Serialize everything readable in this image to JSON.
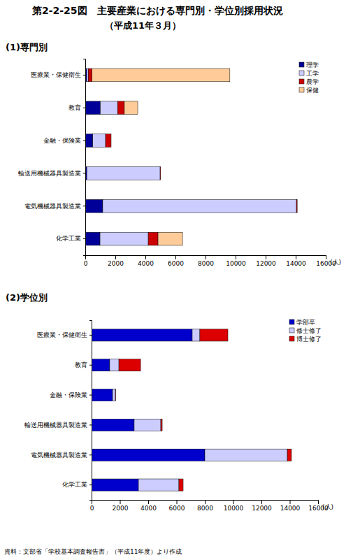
{
  "title": "第2-2-25図　主要産業における専門別・学位別採用状況",
  "subtitle": "（平成11年３月）",
  "source": "資料：文部省「学校基本調査報告書」（平成11年度）より作成",
  "chart_data": [
    {
      "type": "bar",
      "title": "(1)専門別",
      "orientation": "horizontal",
      "stacked": true,
      "legend": "top-right",
      "categories": [
        "医療業・保健衛生",
        "教育",
        "金融・保険業",
        "輸送用機械器具製造業",
        "電気機械器具製造業",
        "化学工業"
      ],
      "series": [
        {
          "name": "理学",
          "color": "#000099",
          "values": [
            100,
            1000,
            500,
            100,
            1160,
            980
          ]
        },
        {
          "name": "工学",
          "color": "#ccccff",
          "values": [
            100,
            1150,
            850,
            4880,
            12890,
            3210
          ]
        },
        {
          "name": "農学",
          "color": "#cc0000",
          "values": [
            250,
            450,
            370,
            30,
            50,
            650
          ]
        },
        {
          "name": "保健",
          "color": "#ffcc99",
          "values": [
            9170,
            890,
            0,
            0,
            0,
            1630
          ]
        }
      ],
      "xlim": [
        0,
        16000
      ],
      "xticks": [
        0,
        2000,
        4000,
        6000,
        8000,
        10000,
        12000,
        14000,
        16000
      ],
      "xlabel": "(人)"
    },
    {
      "type": "bar",
      "title": "(2)学位別",
      "orientation": "horizontal",
      "stacked": true,
      "legend": "top-right",
      "categories": [
        "医療業・保健衛生",
        "教育",
        "金融・保険業",
        "輸送用機械器具製造業",
        "電気機械器具製造業",
        "化学工業"
      ],
      "series": [
        {
          "name": "学部卒",
          "color": "#0000cc",
          "values": [
            7110,
            1280,
            1480,
            3010,
            8000,
            3310
          ]
        },
        {
          "name": "修士修了",
          "color": "#ccccff",
          "values": [
            540,
            650,
            200,
            1880,
            5830,
            2860
          ]
        },
        {
          "name": "博士修了",
          "color": "#dd0000",
          "values": [
            1980,
            1530,
            20,
            100,
            290,
            300
          ]
        }
      ],
      "xlim": [
        0,
        16000
      ],
      "xticks": [
        0,
        2000,
        4000,
        6000,
        8000,
        10000,
        12000,
        14000,
        16000
      ],
      "xlabel": "(人)"
    }
  ]
}
